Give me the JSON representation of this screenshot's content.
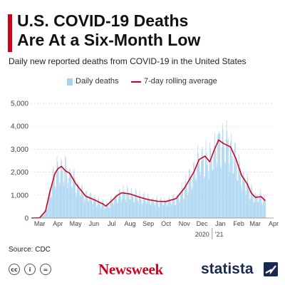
{
  "header": {
    "title": "U.S. COVID-19 Deaths\nAre At a Six-Month Low",
    "subtitle": "Daily new reported deaths from COVID-19 in the United States",
    "accent_color": "#d0021b"
  },
  "footer": {
    "source": "Source: CDC",
    "license_icons": [
      "cc-icon",
      "attribution-icon",
      "no-derivatives-icon"
    ],
    "newsweek_logo": "Newsweek",
    "statista_logo": "statista"
  },
  "chart_data": {
    "type": "bar",
    "legend": [
      {
        "name": "Daily deaths",
        "color": "#a5d3f0",
        "kind": "bar"
      },
      {
        "name": "7-day rolling average",
        "color": "#d0021b",
        "kind": "line"
      }
    ],
    "legend_placement": "top",
    "ylim": [
      0,
      5000
    ],
    "yticks": [
      0,
      1000,
      2000,
      3000,
      4000,
      5000
    ],
    "ytick_labels": [
      "0",
      "1,000",
      "2,000",
      "3,000",
      "4,000",
      "5,000"
    ],
    "grid": true,
    "x_ticks": [
      {
        "label": "Mar",
        "date": "2020-03-15"
      },
      {
        "label": "Apr",
        "date": "2020-04-15"
      },
      {
        "label": "May",
        "date": "2020-05-15"
      },
      {
        "label": "Jun",
        "date": "2020-06-15"
      },
      {
        "label": "Jul",
        "date": "2020-07-15"
      },
      {
        "label": "Aug",
        "date": "2020-08-15"
      },
      {
        "label": "Sep",
        "date": "2020-09-15"
      },
      {
        "label": "Oct",
        "date": "2020-10-15"
      },
      {
        "label": "Nov",
        "date": "2020-11-15"
      },
      {
        "label": "Dec",
        "date": "2020-12-15"
      },
      {
        "label": "Jan",
        "date": "2021-01-15"
      },
      {
        "label": "Feb",
        "date": "2021-02-15"
      },
      {
        "label": "Mar",
        "date": "2021-03-15"
      },
      {
        "label": "Apr",
        "date": "2021-04-15"
      }
    ],
    "year_labels": [
      {
        "label": "2020",
        "date": "2020-12-20"
      },
      {
        "label": "'21",
        "date": "2021-01-10"
      }
    ],
    "series": [
      {
        "name": "7-day rolling average",
        "kind": "line",
        "points": [
          {
            "date": "2020-03-01",
            "value": 0
          },
          {
            "date": "2020-03-15",
            "value": 10
          },
          {
            "date": "2020-03-25",
            "value": 300
          },
          {
            "date": "2020-04-01",
            "value": 1100
          },
          {
            "date": "2020-04-10",
            "value": 1950
          },
          {
            "date": "2020-04-15",
            "value": 2150
          },
          {
            "date": "2020-04-21",
            "value": 2250
          },
          {
            "date": "2020-04-28",
            "value": 2050
          },
          {
            "date": "2020-05-05",
            "value": 1950
          },
          {
            "date": "2020-05-15",
            "value": 1500
          },
          {
            "date": "2020-06-01",
            "value": 950
          },
          {
            "date": "2020-06-15",
            "value": 800
          },
          {
            "date": "2020-07-01",
            "value": 600
          },
          {
            "date": "2020-07-05",
            "value": 520
          },
          {
            "date": "2020-07-15",
            "value": 750
          },
          {
            "date": "2020-07-25",
            "value": 1000
          },
          {
            "date": "2020-08-01",
            "value": 1100
          },
          {
            "date": "2020-08-15",
            "value": 1050
          },
          {
            "date": "2020-09-01",
            "value": 900
          },
          {
            "date": "2020-09-15",
            "value": 800
          },
          {
            "date": "2020-10-01",
            "value": 730
          },
          {
            "date": "2020-10-15",
            "value": 720
          },
          {
            "date": "2020-11-01",
            "value": 850
          },
          {
            "date": "2020-11-15",
            "value": 1300
          },
          {
            "date": "2020-12-01",
            "value": 2000
          },
          {
            "date": "2020-12-10",
            "value": 2550
          },
          {
            "date": "2020-12-20",
            "value": 2700
          },
          {
            "date": "2020-12-28",
            "value": 2450
          },
          {
            "date": "2021-01-05",
            "value": 3000
          },
          {
            "date": "2021-01-12",
            "value": 3400
          },
          {
            "date": "2021-01-20",
            "value": 3250
          },
          {
            "date": "2021-02-01",
            "value": 3100
          },
          {
            "date": "2021-02-10",
            "value": 2600
          },
          {
            "date": "2021-02-20",
            "value": 1850
          },
          {
            "date": "2021-03-01",
            "value": 1500
          },
          {
            "date": "2021-03-08",
            "value": 1100
          },
          {
            "date": "2021-03-15",
            "value": 900
          },
          {
            "date": "2021-03-25",
            "value": 930
          },
          {
            "date": "2021-04-01",
            "value": 750
          }
        ]
      }
    ],
    "daily_deaths_note": "Daily deaths bars follow the rolling average with day-to-day noise"
  }
}
